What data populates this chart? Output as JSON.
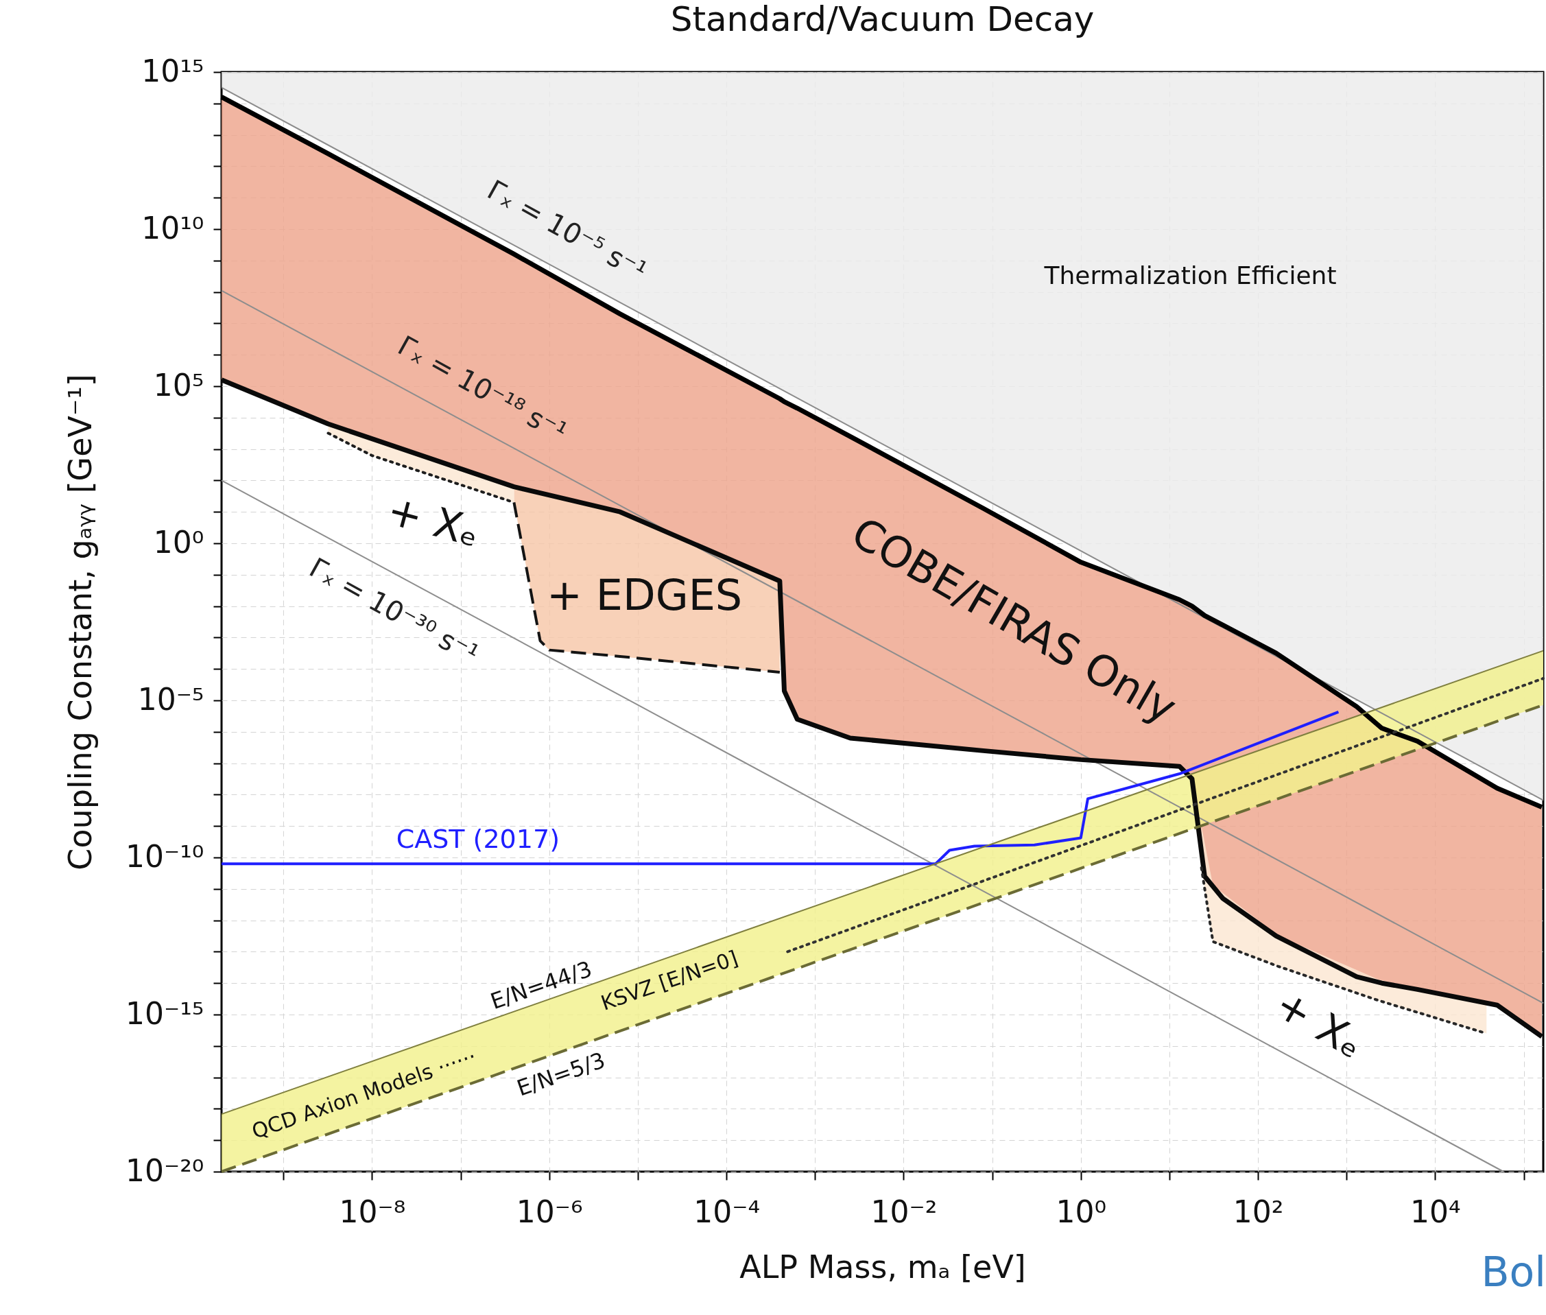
{
  "chart_data": {
    "type": "line",
    "title": "Standard/Vacuum Decay",
    "xlabel": "ALP Mass, mₐ   [eV]",
    "ylabel": "Coupling Constant, gₐᵧᵧ   [GeV⁻¹]",
    "log": "xy",
    "grid": true,
    "xlim": [
      2e-10,
      166000.0
    ],
    "ylim": [
      1e-20,
      1000000000000000.0
    ],
    "xticks": [
      {
        "value": 1e-09,
        "label": null
      },
      {
        "value": 1e-08,
        "label": "10⁻⁸"
      },
      {
        "value": 1e-07,
        "label": null
      },
      {
        "value": 1e-06,
        "label": "10⁻⁶"
      },
      {
        "value": 1e-05,
        "label": null
      },
      {
        "value": 0.0001,
        "label": "10⁻⁴"
      },
      {
        "value": 0.001,
        "label": null
      },
      {
        "value": 0.01,
        "label": "10⁻²"
      },
      {
        "value": 0.1,
        "label": null
      },
      {
        "value": 1,
        "label": "10⁰"
      },
      {
        "value": 10,
        "label": null
      },
      {
        "value": 100,
        "label": "10²"
      },
      {
        "value": 1000,
        "label": null
      },
      {
        "value": 10000,
        "label": "10⁴"
      },
      {
        "value": 100000,
        "label": null
      }
    ],
    "yticks": [
      {
        "value": 1e-20,
        "label": "10⁻²⁰"
      },
      {
        "value": 1e-19,
        "label": null
      },
      {
        "value": 1e-18,
        "label": null
      },
      {
        "value": 1e-17,
        "label": null
      },
      {
        "value": 1e-16,
        "label": null
      },
      {
        "value": 1e-15,
        "label": "10⁻¹⁵"
      },
      {
        "value": 1e-14,
        "label": null
      },
      {
        "value": 1e-13,
        "label": null
      },
      {
        "value": 1e-12,
        "label": null
      },
      {
        "value": 1e-11,
        "label": null
      },
      {
        "value": 1e-10,
        "label": "10⁻¹⁰"
      },
      {
        "value": 1e-09,
        "label": null
      },
      {
        "value": 1e-08,
        "label": null
      },
      {
        "value": 1e-07,
        "label": null
      },
      {
        "value": 1e-06,
        "label": null
      },
      {
        "value": 1e-05,
        "label": "10⁻⁵"
      },
      {
        "value": 0.0001,
        "label": null
      },
      {
        "value": 0.001,
        "label": null
      },
      {
        "value": 0.01,
        "label": null
      },
      {
        "value": 0.1,
        "label": null
      },
      {
        "value": 1,
        "label": "10⁰"
      },
      {
        "value": 10,
        "label": null
      },
      {
        "value": 100,
        "label": null
      },
      {
        "value": 1000,
        "label": null
      },
      {
        "value": 10000,
        "label": null
      },
      {
        "value": 100000,
        "label": "10⁵"
      },
      {
        "value": 1000000.0,
        "label": null
      },
      {
        "value": 10000000.0,
        "label": null
      },
      {
        "value": 100000000.0,
        "label": null
      },
      {
        "value": 1000000000.0,
        "label": null
      },
      {
        "value": 10000000000.0,
        "label": "10¹⁰"
      },
      {
        "value": 100000000000.0,
        "label": null
      },
      {
        "value": 1000000000000.0,
        "label": null
      },
      {
        "value": 10000000000000.0,
        "label": null
      },
      {
        "value": 100000000000000.0,
        "label": null
      },
      {
        "value": 1000000000000000.0,
        "label": "10¹⁵"
      }
    ],
    "series": [
      {
        "type": "line",
        "color": "#8c8c8c",
        "x": [
          2e-10,
          166000.0
        ],
        "values": [
          320000000000000.0,
          6.6e-09
        ],
        "lower": [
          320000000000000.0,
          6.6e-09
        ],
        "upper": [
          1000000000000000.0,
          1000000000000000.0
        ]
      },
      {
        "type": "line",
        "color": "#8d8d8d",
        "x": [
          2e-10,
          166000.0
        ],
        "values": [
          110000000.0,
          2.3e-15
        ]
      },
      {
        "type": "line",
        "color": "#8e8e8e",
        "x": [
          2e-10,
          59000.0
        ],
        "values": [
          100,
          1e-20
        ]
      },
      {
        "type": "line",
        "color": "#000000",
        "x": [
          2e-10,
          3.2e-09,
          4e-07,
          6.3e-06,
          0.0004,
          0.00045,
          0.00063,
          0.0025,
          0.079,
          1,
          13,
          18,
          25,
          40,
          160,
          1300,
          2500,
          6300,
          50000,
          160000
        ],
        "values": [
          160000000000000.0,
          2500000000000.0,
          1600000000.0,
          20000000.0,
          40000.0,
          32000.0,
          20000.0,
          2500.0,
          13,
          0.25,
          0.016,
          0.01,
          0.005,
          0.0025,
          0.00032,
          6.3e-06,
          1.3e-06,
          5e-07,
          1.6e-08,
          4e-09
        ],
        "lower": [
          160000.0,
          6300.0,
          63,
          10,
          0.063,
          2e-05,
          2.5e-06,
          6.3e-07,
          2.5e-07,
          1.3e-07,
          7.9e-08,
          3.2e-08,
          2.5e-11,
          5e-12,
          3.2e-13,
          1.6e-14,
          1e-14,
          6.3e-15,
          2e-15,
          2e-16
        ],
        "upper": [
          160000000000000.0,
          2500000000000.0,
          1600000000.0,
          20000000.0,
          40000.0,
          32000.0,
          20000.0,
          2500.0,
          13,
          0.25,
          0.016,
          0.01,
          0.005,
          0.0025,
          0.00032,
          6.3e-06,
          1.3e-06,
          5e-07,
          1.6e-08,
          4e-09
        ]
      },
      {
        "type": "line",
        "color": "#0a0a0a",
        "x": [
          2e-10,
          3.2e-09,
          4e-07,
          6.3e-06,
          0.0004,
          0.00045,
          0.00063,
          0.0025,
          0.079,
          1,
          13,
          18,
          25,
          40,
          160,
          1300,
          2500,
          6300,
          50000,
          160000
        ],
        "values": [
          160000.0,
          6300.0,
          63,
          10,
          0.063,
          2e-05,
          2.5e-06,
          6.3e-07,
          2.5e-07,
          1.3e-07,
          7.9e-08,
          3.2e-08,
          2.5e-11,
          5e-12,
          3.2e-13,
          1.6e-14,
          1e-14,
          6.3e-15,
          2e-15,
          2e-16
        ]
      },
      {
        "type": "line",
        "color": "#141414",
        "line_style": "dashed",
        "x": [
          4e-07,
          7.9e-07,
          1e-06,
          6.3e-06,
          0.0004
        ],
        "values": [
          20,
          0.00079,
          0.0004,
          0.00025,
          7.9e-05
        ],
        "lower": [
          20,
          0.00079,
          0.0004,
          0.00025,
          7.9e-05
        ],
        "upper": [
          63,
          40,
          32,
          10,
          0.063
        ]
      },
      {
        "type": "line",
        "color": "#1e1e1e",
        "line_style": "dotted",
        "x": [
          3.2e-09,
          1e-08,
          4e-07
        ],
        "values": [
          3200.0,
          620,
          20
        ],
        "lower": [
          3200.0,
          620,
          20
        ],
        "upper": [
          6300.0,
          2100.0,
          63
        ]
      },
      {
        "type": "line",
        "color": "#282828",
        "line_style": "dotted",
        "x": [
          23,
          31,
          170,
          2300,
          38000
        ],
        "values": [
          4.7e-11,
          2.1e-13,
          3.4e-14,
          2.8e-15,
          2.5e-16
        ],
        "lower": [
          4.7e-11,
          2.1e-13,
          3.4e-14,
          2.8e-15,
          2.5e-16
        ],
        "upper": [
          1e-09,
          1.3e-11,
          3.2e-13,
          1.3e-14,
          2.2e-15
        ]
      },
      {
        "type": "line",
        "color": "#1f1fff",
        "x": [
          2e-10,
          0.023,
          0.033,
          0.063,
          0.3,
          1,
          1.2,
          13,
          810
        ],
        "values": [
          6.3e-11,
          6.3e-11,
          1.7e-10,
          2.3e-10,
          2.5e-10,
          4.2e-10,
          7.4e-09,
          4.6e-08,
          4.3e-06
        ]
      },
      {
        "type": "line",
        "color": "#7f7f3f",
        "x": [
          2e-10,
          166000.0
        ],
        "values": [
          6.8e-19,
          0.00038
        ],
        "lower": [
          1e-20,
          7.1e-06
        ],
        "upper": [
          6.8e-19,
          0.00038
        ]
      },
      {
        "type": "line",
        "color": "#323232",
        "line_style": "dotted",
        "x": [
          0.00049,
          166000.0
        ],
        "values": [
          1e-13,
          5e-05
        ]
      },
      {
        "type": "line",
        "color": "#6b6b35",
        "line_style": "dashed",
        "x": [
          2e-10,
          166000.0
        ],
        "values": [
          1e-20,
          7.1e-06
        ]
      }
    ],
    "annotations": [
      "Thermalization Efficient",
      "Γₓ = 10⁻⁵ s⁻¹",
      "Γₓ = 10⁻¹⁸ s⁻¹",
      "Γₓ = 10⁻³⁰ s⁻¹",
      "+ Xₑ",
      "+ EDGES",
      "COBE/FIRAS Only",
      "CAST (2017)",
      "+ Xₑ",
      "E/N=44/3",
      "QCD Axion Models ······",
      "KSVZ  [E/N=0]",
      "E/N=5/3",
      "Bol"
    ]
  }
}
